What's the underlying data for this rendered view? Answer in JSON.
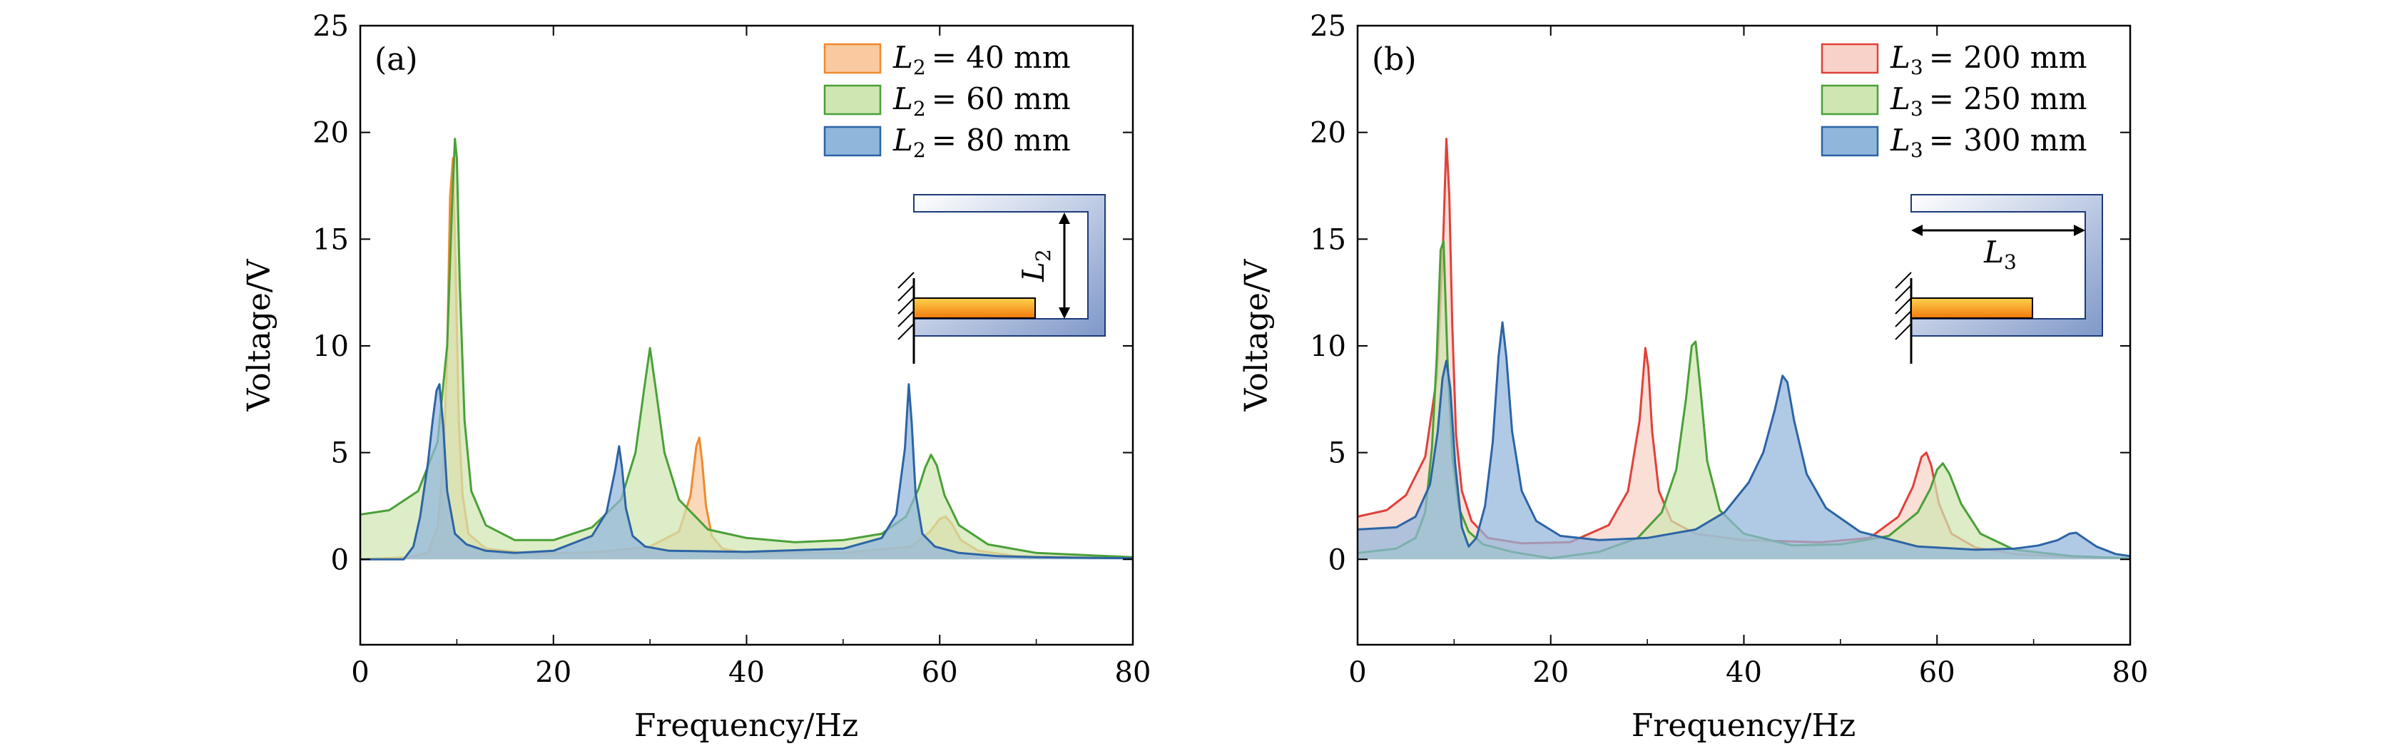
{
  "chart_data": [
    {
      "type": "area",
      "panel_label": "(a)",
      "xlabel": "Frequency/Hz",
      "ylabel": "Voltage/V",
      "xlim": [
        0,
        80
      ],
      "ylim": [
        -4,
        25
      ],
      "xticks": [
        0,
        20,
        40,
        60,
        80
      ],
      "yticks": [
        0,
        5,
        10,
        15,
        20,
        25
      ],
      "legend_position": "top-right",
      "inset": {
        "label_var": "L",
        "label_sub": "2",
        "dimension": "vertical"
      },
      "series": [
        {
          "name": "L2 = 40 mm",
          "legend_var": "L",
          "legend_sub": "2",
          "legend_value": "= 40 mm",
          "color": "#ef8a2e",
          "fill": "#fac9a0",
          "x": [
            0,
            5,
            7,
            8,
            8.6,
            9,
            9.3,
            9.6,
            9.9,
            10.2,
            10.6,
            11.2,
            13,
            18,
            25,
            30,
            33,
            34.2,
            34.8,
            35.1,
            35.4,
            35.8,
            36.4,
            37.5,
            40,
            50,
            57,
            59,
            60,
            60.6,
            61.2,
            62.2,
            64,
            68,
            80
          ],
          "y": [
            0,
            0.1,
            0.3,
            1.5,
            4.5,
            9.5,
            17,
            18.8,
            13,
            6.5,
            3,
            1.2,
            0.5,
            0.25,
            0.35,
            0.6,
            1.3,
            3,
            5.3,
            5.7,
            4.6,
            2.5,
            1.1,
            0.5,
            0.3,
            0.3,
            0.6,
            1.3,
            1.9,
            2.0,
            1.7,
            0.9,
            0.4,
            0.15,
            0.05
          ]
        },
        {
          "name": "L2 = 60 mm",
          "legend_var": "L",
          "legend_sub": "2",
          "legend_value": "= 60 mm",
          "color": "#4aa038",
          "fill": "#cfe6b2",
          "x": [
            0,
            3,
            6,
            8,
            9,
            9.5,
            9.8,
            10,
            10.3,
            10.8,
            11.5,
            13,
            16,
            20,
            24,
            27,
            28.5,
            29.4,
            30,
            30.6,
            31.5,
            33,
            36,
            40,
            45,
            50,
            54,
            56.5,
            57.8,
            58.5,
            59.1,
            59.7,
            60.5,
            62,
            65,
            70,
            80
          ],
          "y": [
            2.1,
            2.3,
            3.2,
            5.5,
            10,
            16.5,
            19.7,
            18.8,
            13,
            6.5,
            3.2,
            1.6,
            0.9,
            0.9,
            1.5,
            2.8,
            5,
            8,
            9.9,
            8,
            5,
            2.8,
            1.4,
            1.0,
            0.8,
            0.9,
            1.2,
            2.0,
            3.3,
            4.3,
            4.9,
            4.4,
            3.0,
            1.6,
            0.7,
            0.3,
            0.1
          ]
        },
        {
          "name": "L2 = 80 mm",
          "legend_var": "L",
          "legend_sub": "2",
          "legend_value": "= 80 mm",
          "color": "#2d64a5",
          "fill": "#91b6dc",
          "x": [
            0,
            3,
            4.5,
            5.5,
            6.2,
            7,
            7.5,
            7.9,
            8.2,
            8.6,
            9,
            9.8,
            11,
            13,
            16,
            20,
            24,
            25.5,
            26.4,
            26.8,
            27.1,
            27.5,
            28.2,
            29.5,
            32,
            40,
            50,
            54,
            55.5,
            56.4,
            56.8,
            57.1,
            57.5,
            58.2,
            59.5,
            62,
            66,
            70,
            80
          ],
          "y": [
            0,
            0,
            0,
            0.6,
            2,
            4.5,
            6.5,
            7.9,
            8.2,
            6.2,
            3.2,
            1.2,
            0.7,
            0.4,
            0.3,
            0.4,
            1.1,
            2.2,
            4.2,
            5.3,
            4.3,
            2.4,
            1.1,
            0.6,
            0.4,
            0.35,
            0.5,
            1.0,
            2.1,
            5.2,
            8.2,
            6.4,
            3.1,
            1.2,
            0.6,
            0.3,
            0.15,
            0.1,
            0.05
          ]
        }
      ]
    },
    {
      "type": "area",
      "panel_label": "(b)",
      "xlabel": "Frequency/Hz",
      "ylabel": "Voltage/V",
      "xlim": [
        0,
        80
      ],
      "ylim": [
        -4,
        25
      ],
      "xticks": [
        0,
        20,
        40,
        60,
        80
      ],
      "yticks": [
        0,
        5,
        10,
        15,
        20,
        25
      ],
      "legend_position": "top-right",
      "inset": {
        "label_var": "L",
        "label_sub": "3",
        "dimension": "horizontal"
      },
      "series": [
        {
          "name": "L3 = 200 mm",
          "legend_var": "L",
          "legend_sub": "3",
          "legend_value": "= 200 mm",
          "color": "#e0413a",
          "fill": "#f8d2c8",
          "x": [
            0,
            3,
            5,
            7,
            8.2,
            8.8,
            9.2,
            9.5,
            9.8,
            10.2,
            10.8,
            11.8,
            13.5,
            17,
            22,
            26,
            28,
            29.2,
            29.8,
            30.1,
            30.5,
            31.2,
            32.5,
            35,
            40,
            48,
            53,
            56,
            57.5,
            58.4,
            58.9,
            59.4,
            60.2,
            61.5,
            64,
            68,
            74,
            80
          ],
          "y": [
            2.0,
            2.3,
            3.0,
            4.8,
            8.5,
            14,
            19.7,
            17,
            11,
            5.8,
            3.2,
            1.8,
            1.0,
            0.75,
            0.8,
            1.6,
            3.2,
            6.5,
            9.9,
            9.0,
            6.0,
            3.2,
            1.8,
            1.2,
            0.9,
            0.8,
            1.0,
            2.0,
            3.4,
            4.8,
            5.0,
            4.4,
            2.6,
            1.2,
            0.55,
            0.25,
            0.1,
            0.05
          ]
        },
        {
          "name": "L3 = 250 mm",
          "legend_var": "L",
          "legend_sub": "3",
          "legend_value": "= 250 mm",
          "color": "#4aa038",
          "fill": "#cfe6b2",
          "x": [
            0,
            4,
            6,
            7,
            7.7,
            8.2,
            8.6,
            8.9,
            9.3,
            9.8,
            10.5,
            11.5,
            13,
            16,
            20,
            25,
            29,
            31.5,
            33,
            34,
            34.6,
            35,
            35.5,
            36.2,
            37.5,
            40,
            45,
            50,
            55,
            58,
            59.3,
            60,
            60.6,
            61.3,
            62.5,
            64.5,
            68,
            74,
            80
          ],
          "y": [
            0.3,
            0.5,
            1.0,
            2.2,
            5.2,
            9.5,
            14.5,
            14.9,
            9.5,
            4.8,
            2.4,
            1.3,
            0.7,
            0.35,
            0.05,
            0.35,
            1.0,
            2.2,
            4.2,
            7.5,
            10.0,
            10.2,
            8.0,
            4.6,
            2.3,
            1.2,
            0.65,
            0.7,
            1.1,
            2.2,
            3.3,
            4.2,
            4.5,
            4.0,
            2.6,
            1.2,
            0.45,
            0.15,
            0.05
          ]
        },
        {
          "name": "L3 = 300 mm",
          "legend_var": "L",
          "legend_sub": "3",
          "legend_value": "= 300 mm",
          "color": "#2d64a5",
          "fill": "#91b6dc",
          "x": [
            0,
            4,
            6,
            7.5,
            8.3,
            8.8,
            9.2,
            9.6,
            10.1,
            10.8,
            11.5,
            12.3,
            13.2,
            14,
            14.6,
            15,
            15.4,
            16,
            17,
            18.5,
            21,
            25,
            30,
            35,
            38,
            40.5,
            42,
            43.2,
            44,
            44.5,
            45.2,
            46.5,
            48.5,
            52,
            58,
            64,
            68,
            70.5,
            72.5,
            73.7,
            74.4,
            75.2,
            76.5,
            78.5,
            80
          ],
          "y": [
            1.4,
            1.5,
            2.0,
            3.5,
            6.0,
            8.5,
            9.3,
            8.0,
            4.5,
            1.5,
            0.6,
            1.0,
            2.5,
            5.5,
            9.5,
            11.1,
            9.5,
            6.0,
            3.2,
            1.8,
            1.1,
            0.9,
            1.0,
            1.4,
            2.2,
            3.6,
            5.0,
            7.0,
            8.6,
            8.3,
            6.5,
            4.0,
            2.4,
            1.3,
            0.6,
            0.45,
            0.5,
            0.65,
            0.9,
            1.2,
            1.25,
            1.0,
            0.6,
            0.25,
            0.15
          ]
        }
      ]
    }
  ]
}
